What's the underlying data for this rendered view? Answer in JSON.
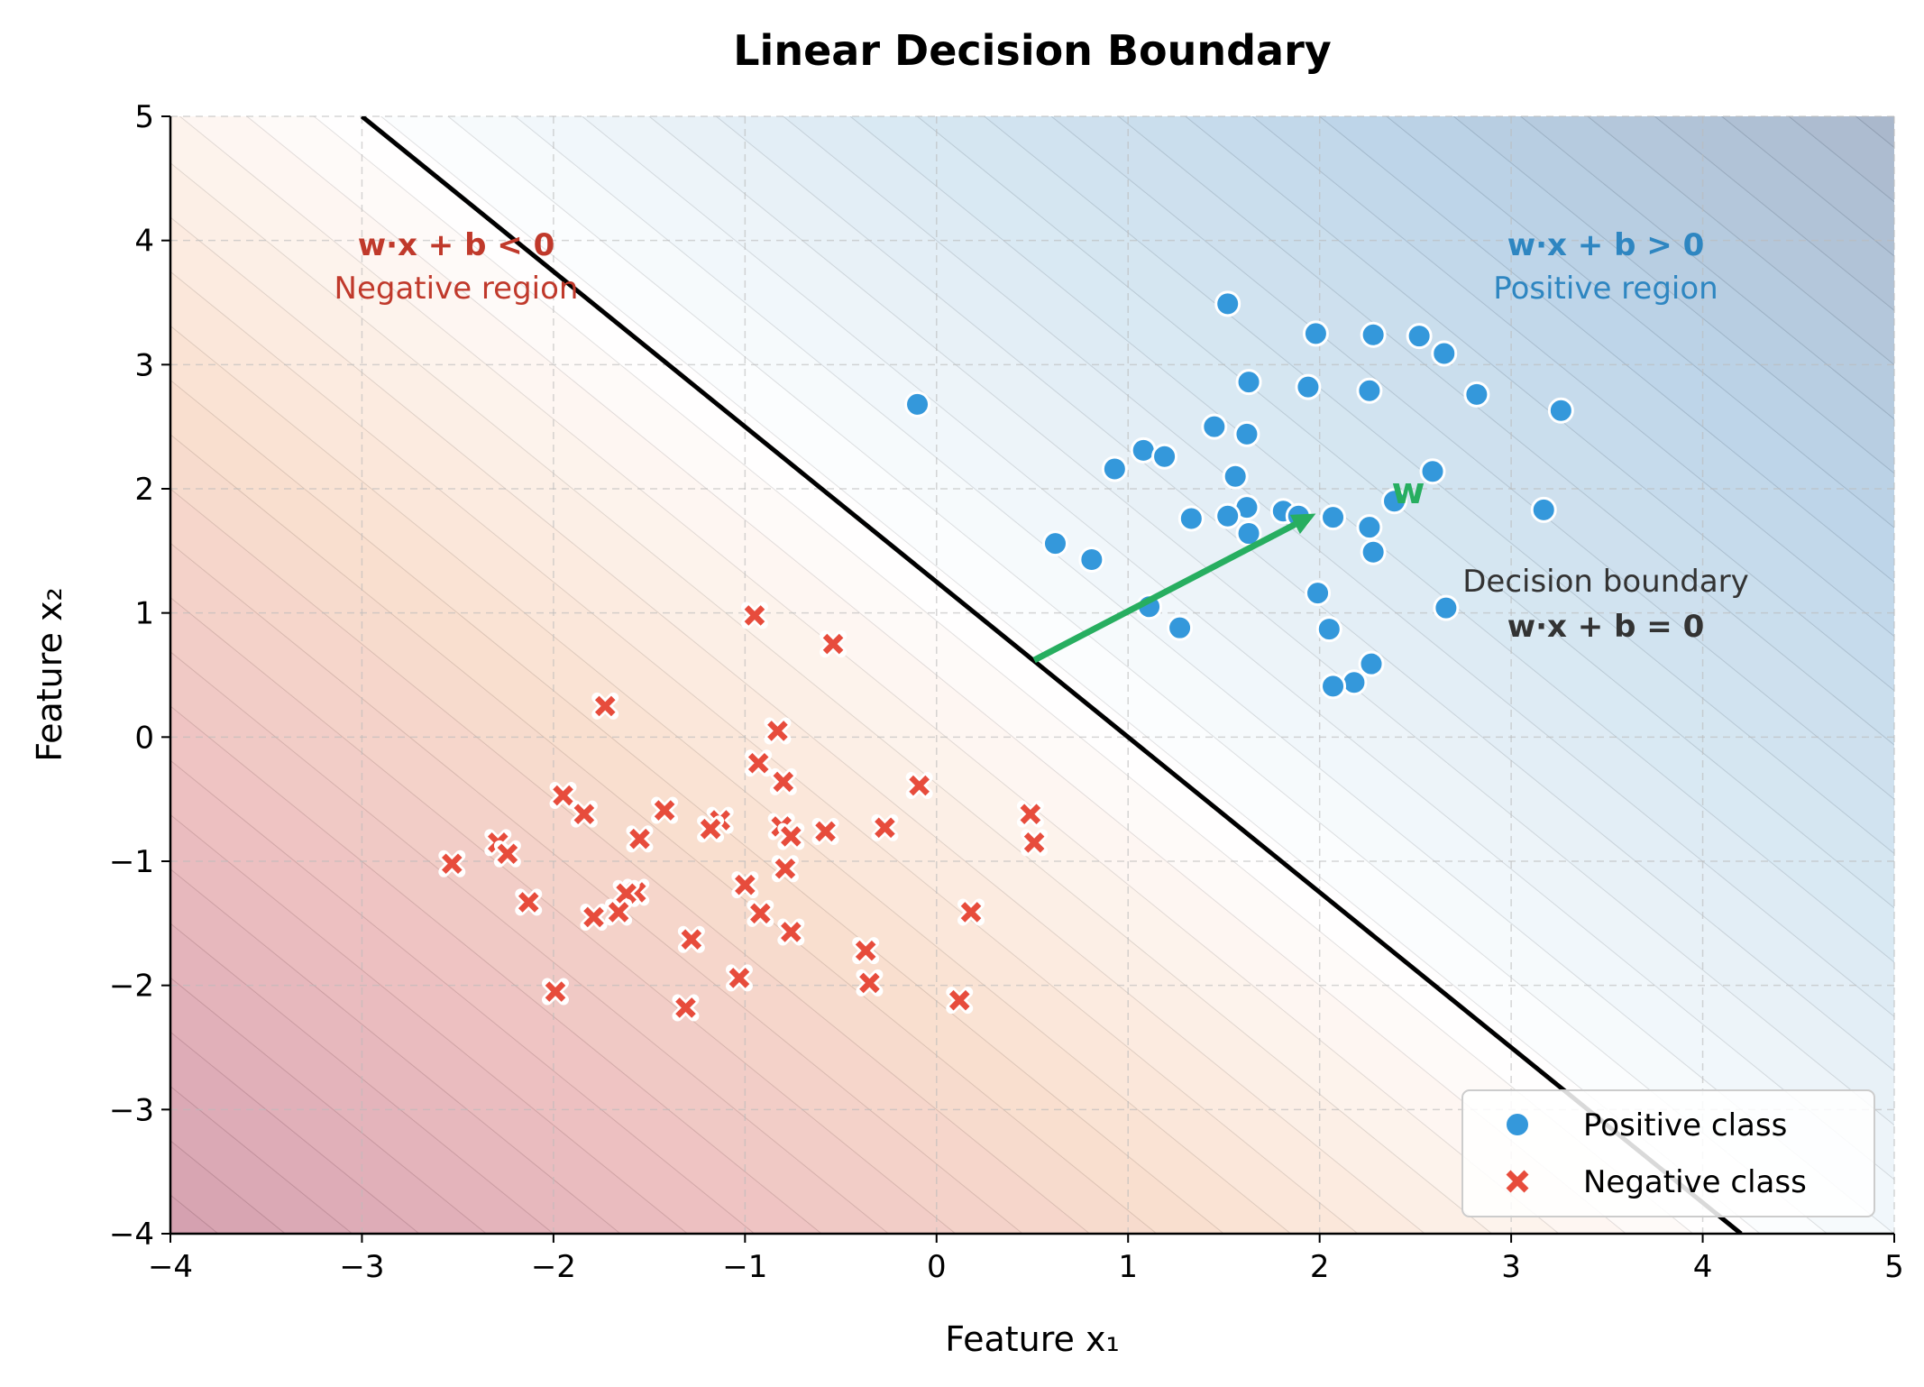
{
  "chart_data": {
    "type": "scatter",
    "title": "Linear Decision Boundary",
    "xlabel": "Feature x₁",
    "ylabel": "Feature x₂",
    "xlim": [
      -4,
      5
    ],
    "ylim": [
      -4,
      5
    ],
    "xticks": [
      -4,
      -3,
      -2,
      -1,
      0,
      1,
      2,
      3,
      4,
      5
    ],
    "yticks": [
      -4,
      -3,
      -2,
      -1,
      0,
      1,
      2,
      3,
      4,
      5
    ],
    "grid": true,
    "legend_position": "bottom-right",
    "decision_function": {
      "w": [
        1,
        0.8
      ],
      "b": -1
    },
    "weight_vector": {
      "from": [
        0.51,
        0.62
      ],
      "to": [
        1.98,
        1.8
      ],
      "label": "w",
      "color": "#27ae60"
    },
    "series": [
      {
        "name": "Positive class",
        "marker": "circle",
        "color": "#3498db",
        "points": [
          [
            1.52,
            3.49
          ],
          [
            1.98,
            3.25
          ],
          [
            2.28,
            3.24
          ],
          [
            2.52,
            3.23
          ],
          [
            2.65,
            3.09
          ],
          [
            1.63,
            2.86
          ],
          [
            1.94,
            2.82
          ],
          [
            2.26,
            2.79
          ],
          [
            2.82,
            2.76
          ],
          [
            3.26,
            2.63
          ],
          [
            -0.1,
            2.68
          ],
          [
            1.45,
            2.5
          ],
          [
            1.62,
            2.44
          ],
          [
            1.08,
            2.31
          ],
          [
            1.19,
            2.26
          ],
          [
            0.93,
            2.16
          ],
          [
            1.56,
            2.1
          ],
          [
            2.59,
            2.14
          ],
          [
            2.39,
            1.9
          ],
          [
            3.17,
            1.83
          ],
          [
            1.62,
            1.85
          ],
          [
            1.81,
            1.82
          ],
          [
            1.89,
            1.78
          ],
          [
            2.07,
            1.77
          ],
          [
            1.33,
            1.76
          ],
          [
            1.52,
            1.78
          ],
          [
            1.63,
            1.64
          ],
          [
            2.26,
            1.69
          ],
          [
            2.28,
            1.49
          ],
          [
            0.62,
            1.56
          ],
          [
            0.81,
            1.43
          ],
          [
            1.99,
            1.16
          ],
          [
            1.11,
            1.05
          ],
          [
            2.66,
            1.04
          ],
          [
            1.27,
            0.88
          ],
          [
            2.05,
            0.87
          ],
          [
            2.27,
            0.59
          ],
          [
            2.18,
            0.44
          ],
          [
            2.07,
            0.41
          ]
        ]
      },
      {
        "name": "Negative class",
        "marker": "x",
        "color": "#e74c3c",
        "points": [
          [
            -0.95,
            0.98
          ],
          [
            -0.54,
            0.75
          ],
          [
            -1.73,
            0.25
          ],
          [
            -0.83,
            0.05
          ],
          [
            -0.93,
            -0.21
          ],
          [
            -0.8,
            -0.36
          ],
          [
            -0.09,
            -0.39
          ],
          [
            -1.95,
            -0.47
          ],
          [
            -1.84,
            -0.62
          ],
          [
            -1.42,
            -0.59
          ],
          [
            0.49,
            -0.62
          ],
          [
            -1.13,
            -0.67
          ],
          [
            -1.18,
            -0.74
          ],
          [
            -0.81,
            -0.72
          ],
          [
            -0.76,
            -0.8
          ],
          [
            -0.58,
            -0.76
          ],
          [
            -0.27,
            -0.73
          ],
          [
            0.51,
            -0.85
          ],
          [
            -1.55,
            -0.82
          ],
          [
            -2.29,
            -0.85
          ],
          [
            -2.24,
            -0.94
          ],
          [
            -2.53,
            -1.02
          ],
          [
            -0.79,
            -1.06
          ],
          [
            -1.0,
            -1.19
          ],
          [
            -1.57,
            -1.25
          ],
          [
            -1.62,
            -1.26
          ],
          [
            -2.13,
            -1.33
          ],
          [
            -1.66,
            -1.41
          ],
          [
            -1.79,
            -1.45
          ],
          [
            -0.92,
            -1.42
          ],
          [
            0.18,
            -1.41
          ],
          [
            -0.76,
            -1.57
          ],
          [
            -1.28,
            -1.63
          ],
          [
            -0.37,
            -1.72
          ],
          [
            -0.35,
            -1.98
          ],
          [
            -1.03,
            -1.94
          ],
          [
            -1.99,
            -2.05
          ],
          [
            -1.31,
            -2.18
          ],
          [
            0.12,
            -2.12
          ]
        ]
      }
    ],
    "annotations": {
      "negative": {
        "formula": "w·x + b < 0",
        "label": "Negative region",
        "color": "#c0392b"
      },
      "positive": {
        "formula": "w·x + b > 0",
        "label": "Positive region",
        "color": "#2e86c1"
      },
      "boundary": {
        "label": "Decision boundary",
        "formula": "w·x + b = 0",
        "color": "#333333"
      }
    }
  }
}
